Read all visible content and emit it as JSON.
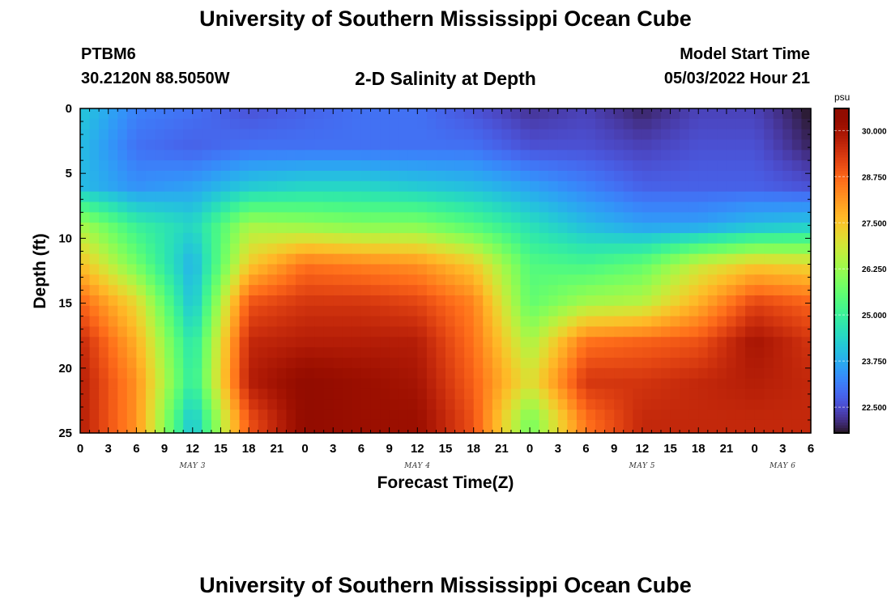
{
  "page": {
    "title": "University of Southern Mississippi Ocean Cube",
    "station": "PTBM6",
    "coords": "30.2120N  88.5050W",
    "subtitle": "2-D Salinity at Depth",
    "start_label": "Model Start Time",
    "start_value": "05/03/2022 Hour 21",
    "footer_title": "University of Southern Mississippi Ocean Cube"
  },
  "chart_data": {
    "type": "heatmap",
    "title": "2-D Salinity at Depth",
    "xlabel": "Forecast Time(Z)",
    "ylabel": "Depth (ft)",
    "x_range_hours": [
      0,
      78
    ],
    "y_range_ft": [
      0,
      25
    ],
    "y_reversed": true,
    "x_tick_labels": [
      "0",
      "3",
      "6",
      "9",
      "12",
      "15",
      "18",
      "21",
      "0",
      "3",
      "6",
      "9",
      "12",
      "15",
      "18",
      "21",
      "0",
      "3",
      "6",
      "9",
      "12",
      "15",
      "18",
      "21",
      "0",
      "3",
      "6"
    ],
    "y_tick_labels": [
      "0",
      "5",
      "10",
      "15",
      "20",
      "25"
    ],
    "date_labels": [
      {
        "label": "MAY 3",
        "hour": 12
      },
      {
        "label": "MAY 4",
        "hour": 36
      },
      {
        "label": "MAY 5",
        "hour": 60
      },
      {
        "label": "MAY 6",
        "hour": 75
      }
    ],
    "colorbar": {
      "unit": "psu",
      "min": 21.8,
      "max": 30.6,
      "tick_labels": [
        "30.000",
        "28.750",
        "27.500",
        "26.250",
        "25.000",
        "23.750",
        "22.500"
      ],
      "tick_values": [
        30.0,
        28.75,
        27.5,
        26.25,
        25.0,
        23.75,
        22.5
      ],
      "colormap": "turbo"
    },
    "depth_levels_ft": [
      0,
      3,
      6,
      9,
      12,
      15,
      18,
      21,
      24
    ],
    "time_hours": [
      0,
      6,
      12,
      18,
      24,
      30,
      36,
      42,
      48,
      54,
      60,
      66,
      72,
      78
    ],
    "salinity_psu": [
      [
        24.2,
        23.2,
        23.0,
        22.6,
        22.8,
        23.0,
        23.0,
        22.6,
        22.2,
        22.4,
        22.0,
        22.4,
        22.4,
        21.8
      ],
      [
        24.0,
        23.0,
        22.8,
        23.0,
        23.0,
        23.0,
        23.0,
        23.0,
        22.6,
        22.6,
        22.4,
        22.6,
        22.6,
        22.0
      ],
      [
        24.0,
        23.4,
        23.6,
        24.2,
        24.4,
        24.4,
        24.2,
        24.0,
        23.6,
        23.2,
        22.8,
        22.8,
        22.8,
        22.6
      ],
      [
        26.4,
        25.0,
        24.4,
        26.4,
        26.2,
        26.0,
        26.0,
        25.4,
        24.6,
        24.0,
        23.6,
        23.6,
        24.0,
        24.2
      ],
      [
        27.6,
        25.8,
        23.8,
        27.4,
        28.6,
        28.4,
        28.2,
        27.4,
        25.4,
        25.2,
        25.6,
        26.8,
        27.4,
        27.2
      ],
      [
        28.8,
        27.2,
        24.0,
        29.0,
        29.4,
        29.4,
        29.2,
        28.4,
        25.6,
        26.4,
        26.6,
        27.8,
        29.2,
        28.8
      ],
      [
        29.6,
        27.8,
        24.6,
        29.6,
        29.8,
        29.8,
        29.8,
        28.6,
        26.4,
        28.6,
        28.8,
        29.0,
        30.0,
        29.4
      ],
      [
        29.8,
        28.2,
        24.8,
        29.8,
        30.4,
        30.2,
        30.0,
        28.8,
        27.0,
        29.4,
        29.4,
        29.6,
        29.8,
        29.6
      ],
      [
        29.8,
        28.2,
        24.0,
        29.0,
        30.4,
        30.2,
        30.2,
        29.0,
        25.8,
        28.6,
        29.6,
        29.6,
        29.6,
        29.6
      ]
    ]
  }
}
